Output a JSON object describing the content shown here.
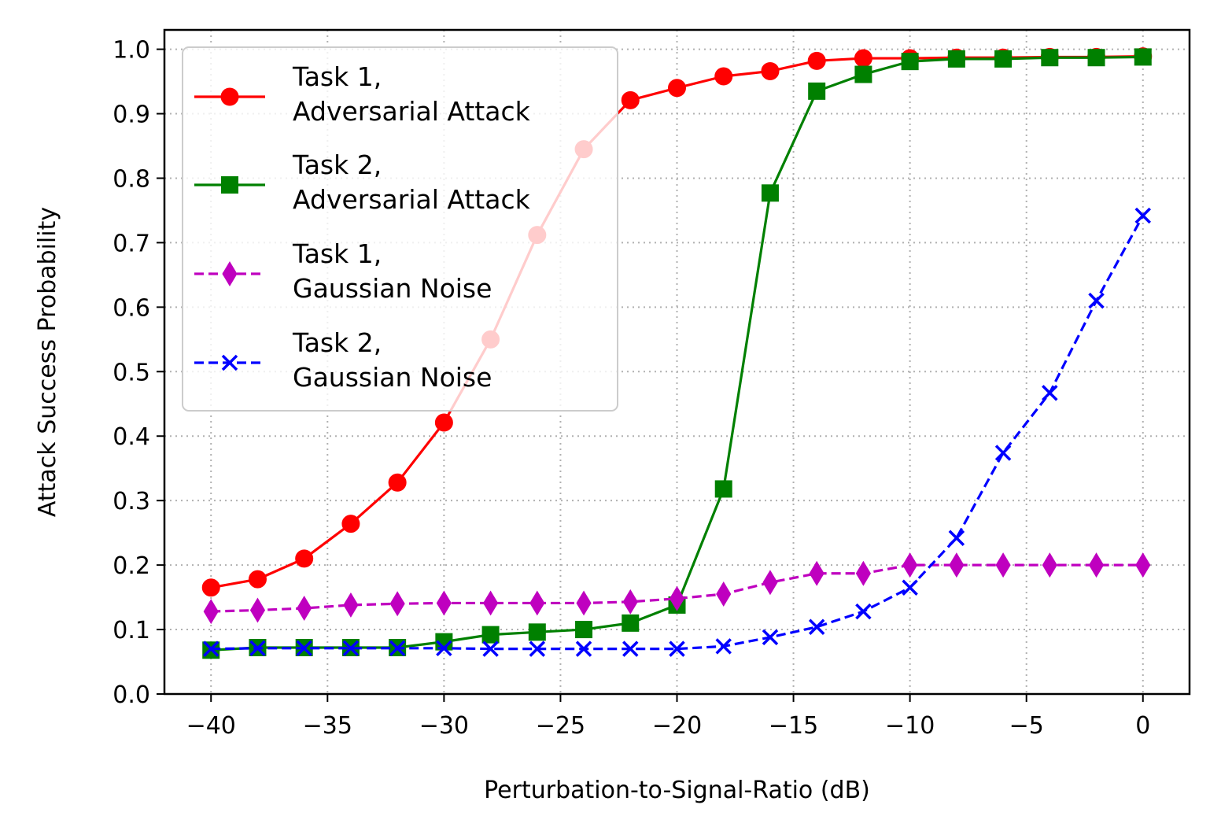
{
  "chart_data": {
    "type": "line",
    "xlabel": "Perturbation-to-Signal-Ratio (dB)",
    "ylabel": "Attack Success Probability",
    "xlim": [
      -42,
      2
    ],
    "ylim": [
      0,
      1.03
    ],
    "x_ticks": [
      -40,
      -35,
      -30,
      -25,
      -20,
      -15,
      -10,
      -5,
      0
    ],
    "x_tick_labels": [
      "−40",
      "−35",
      "−30",
      "−25",
      "−20",
      "−15",
      "−10",
      "−5",
      "0"
    ],
    "y_ticks": [
      0,
      0.1,
      0.2,
      0.3,
      0.4,
      0.5,
      0.6,
      0.7,
      0.8,
      0.9,
      1.0
    ],
    "y_tick_labels": [
      "0.0",
      "0.1",
      "0.2",
      "0.3",
      "0.4",
      "0.5",
      "0.6",
      "0.7",
      "0.8",
      "0.9",
      "1.0"
    ],
    "grid": true,
    "legend_position": "top-left",
    "x": [
      -40,
      -38,
      -36,
      -34,
      -32,
      -30,
      -28,
      -26,
      -24,
      -22,
      -20,
      -18,
      -16,
      -14,
      -12,
      -10,
      -8,
      -6,
      -4,
      -2,
      0
    ],
    "series": [
      {
        "name_lines": [
          "Task 1,",
          "Adversarial Attack"
        ],
        "color": "#ff0000",
        "marker": "circle",
        "linestyle": "solid",
        "values": [
          0.165,
          0.178,
          0.21,
          0.264,
          0.328,
          0.421,
          0.55,
          0.712,
          0.845,
          0.921,
          0.94,
          0.958,
          0.966,
          0.982,
          0.986,
          0.986,
          0.987,
          0.987,
          0.988,
          0.988,
          0.989
        ]
      },
      {
        "name_lines": [
          "Task 2,",
          "Adversarial Attack"
        ],
        "color": "#008000",
        "marker": "square",
        "linestyle": "solid",
        "values": [
          0.068,
          0.072,
          0.072,
          0.072,
          0.072,
          0.081,
          0.092,
          0.096,
          0.1,
          0.11,
          0.138,
          0.318,
          0.777,
          0.935,
          0.961,
          0.981,
          0.985,
          0.985,
          0.987,
          0.987,
          0.988
        ]
      },
      {
        "name_lines": [
          "Task 1,",
          "Gaussian Noise"
        ],
        "color": "#bf00bf",
        "marker": "diamond",
        "linestyle": "dashed",
        "values": [
          0.128,
          0.13,
          0.133,
          0.138,
          0.14,
          0.141,
          0.141,
          0.141,
          0.141,
          0.143,
          0.148,
          0.155,
          0.173,
          0.187,
          0.187,
          0.2,
          0.2,
          0.2,
          0.2,
          0.2,
          0.2
        ]
      },
      {
        "name_lines": [
          "Task 2,",
          "Gaussian Noise"
        ],
        "color": "#0000ff",
        "marker": "x",
        "linestyle": "dashed",
        "values": [
          0.07,
          0.071,
          0.071,
          0.071,
          0.071,
          0.071,
          0.07,
          0.07,
          0.07,
          0.07,
          0.07,
          0.074,
          0.088,
          0.104,
          0.128,
          0.165,
          0.242,
          0.374,
          0.467,
          0.61,
          0.742
        ]
      }
    ]
  }
}
